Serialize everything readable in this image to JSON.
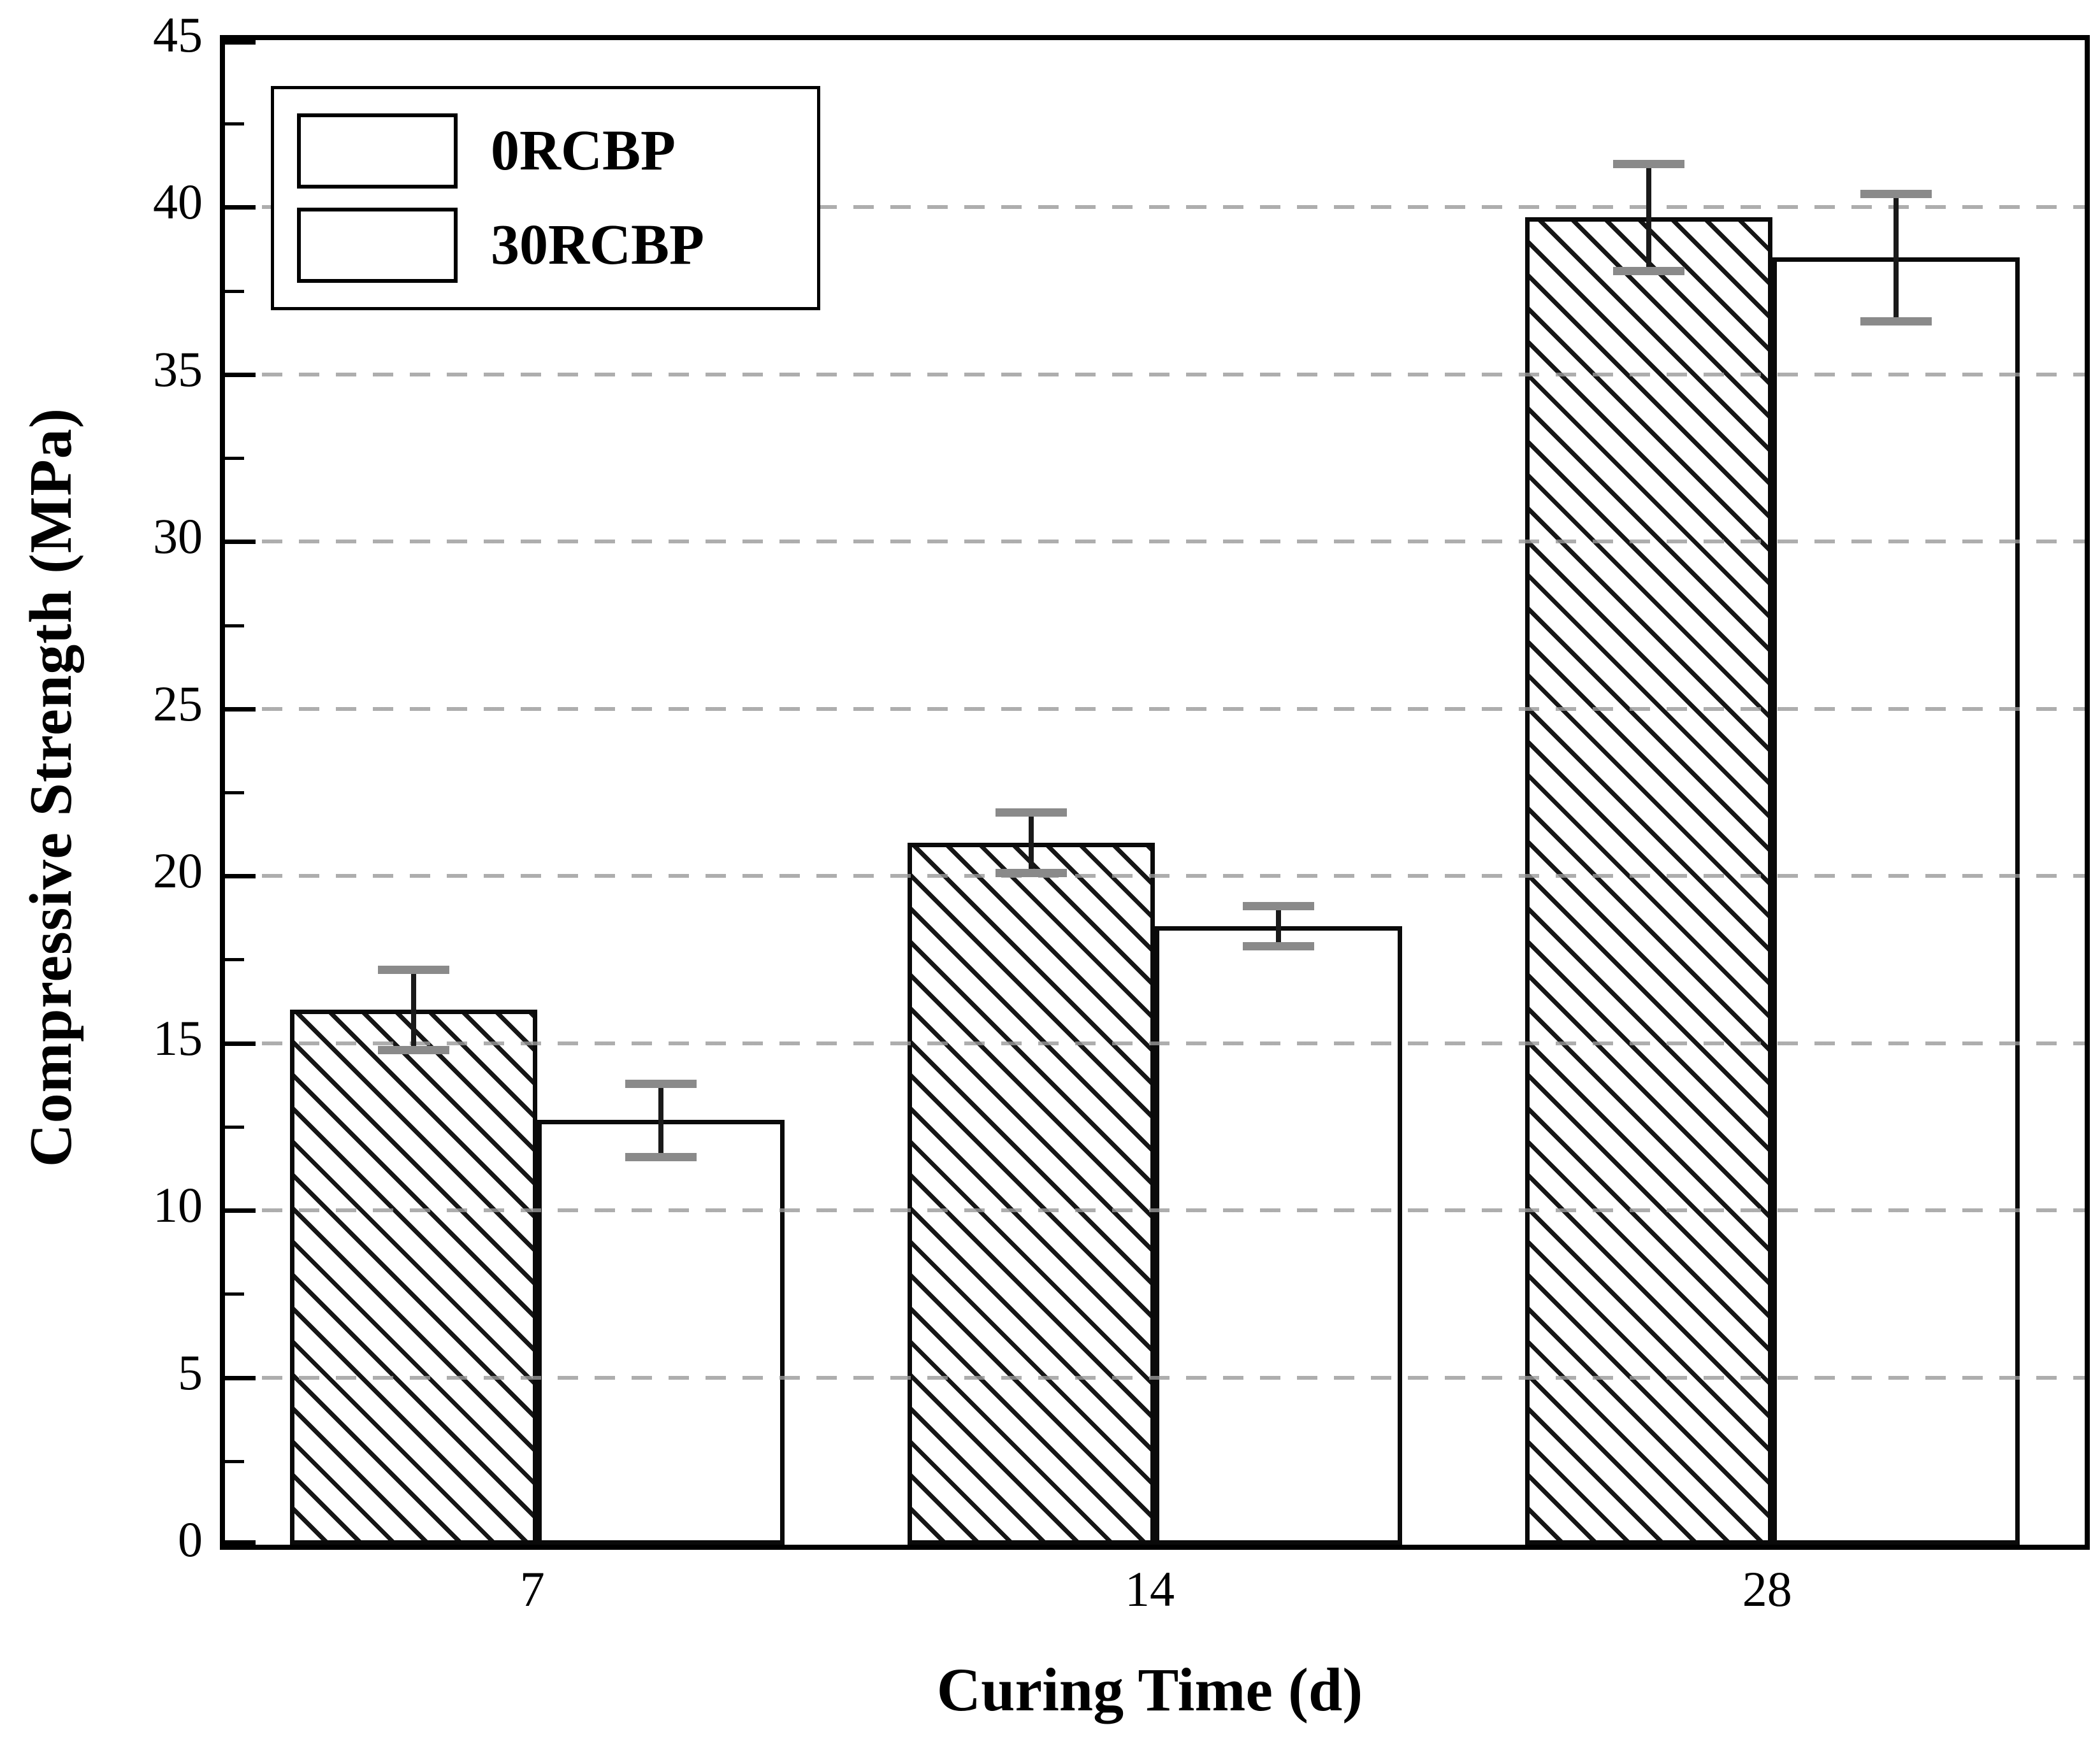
{
  "chart_data": {
    "type": "bar",
    "title": "",
    "xlabel": "Curing Time (d)",
    "ylabel": "Compressive Strength (MPa)",
    "categories": [
      "7",
      "14",
      "28"
    ],
    "series": [
      {
        "name": "0RCBP",
        "fill": "diagonal-hatch",
        "values": [
          16.0,
          21.0,
          39.7
        ],
        "errors": [
          1.2,
          0.9,
          1.6
        ]
      },
      {
        "name": "30RCBP",
        "fill": "white",
        "values": [
          12.7,
          18.5,
          38.5
        ],
        "errors": [
          1.1,
          0.6,
          1.9
        ]
      }
    ],
    "ylim": [
      0,
      45
    ],
    "ytick_step": 5,
    "yminor_step": 2.5,
    "ytick_labels": [
      "0",
      "5",
      "10",
      "15",
      "20",
      "25",
      "30",
      "35",
      "40",
      "45"
    ],
    "grid": "horizontal-dashed",
    "legend_position": "upper-left",
    "colors": {
      "text": "#000000",
      "frame": "#000000",
      "grid": "#999999",
      "bar_edge": "#0a0a0a",
      "bar_fill": "#ffffff",
      "hatch": "#161616",
      "error_stem": "#1a1a1a",
      "error_cap": "#8a8a8a"
    }
  }
}
